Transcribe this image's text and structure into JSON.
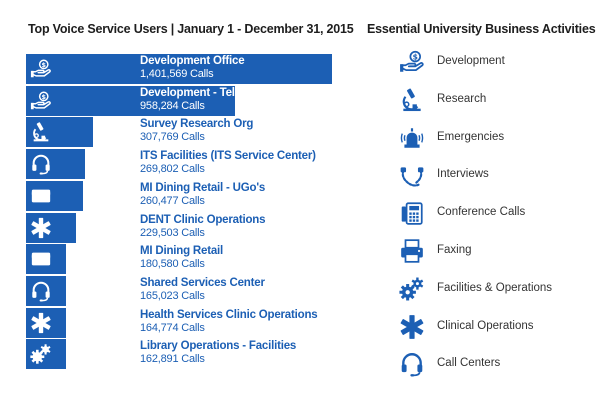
{
  "left_title": "Top Voice Service Users  |  January 1 - December 31, 2015",
  "right_title": "Essential University Business Activities",
  "colors": {
    "bar": "#1c5fb4",
    "icon": "#1c5fb4",
    "text": "#333333"
  },
  "chart_data": {
    "type": "bar",
    "orientation": "horizontal",
    "title": "Top Voice Service Users  |  January 1 - December 31, 2015",
    "unit": "Calls",
    "categories": [
      "Development Office",
      "Development - Telefund",
      "Survey Research Org",
      "ITS Facilities (ITS Service Center)",
      "MI Dining Retail - UGo's",
      "DENT Clinic Operations",
      "MI Dining Retail",
      "Shared Services Center",
      "Health Services Clinic Operations",
      "Library Operations - Facilities"
    ],
    "values": [
      1401569,
      958284,
      307769,
      269802,
      260477,
      229503,
      180580,
      165023,
      164774,
      162891
    ],
    "value_labels": [
      "1,401,569 Calls",
      "958,284 Calls",
      "307,769 Calls",
      "269,802 Calls",
      "260,477 Calls",
      "229,503 Calls",
      "180,580 Calls",
      "165,023 Calls",
      "164,774 Calls",
      "162,891 Calls"
    ],
    "icons": [
      "development-icon",
      "development-icon",
      "research-icon",
      "call-centers-icon",
      "dining-card-icon",
      "clinical-operations-icon",
      "dining-card-icon",
      "call-centers-icon",
      "clinical-operations-icon",
      "facilities-operations-icon"
    ],
    "label_inside_bar": [
      true,
      true,
      false,
      false,
      false,
      false,
      false,
      false,
      false,
      false
    ]
  },
  "legend": {
    "title": "Essential University Business Activities",
    "items": [
      {
        "label": "Development",
        "icon": "development-icon"
      },
      {
        "label": "Research",
        "icon": "research-icon"
      },
      {
        "label": "Emergencies",
        "icon": "emergencies-icon"
      },
      {
        "label": "Interviews",
        "icon": "interviews-icon"
      },
      {
        "label": "Conference Calls",
        "icon": "conference-calls-icon"
      },
      {
        "label": "Faxing",
        "icon": "faxing-icon"
      },
      {
        "label": "Facilities & Operations",
        "icon": "facilities-operations-icon"
      },
      {
        "label": "Clinical Operations",
        "icon": "clinical-operations-icon"
      },
      {
        "label": "Call Centers",
        "icon": "call-centers-icon"
      }
    ]
  }
}
